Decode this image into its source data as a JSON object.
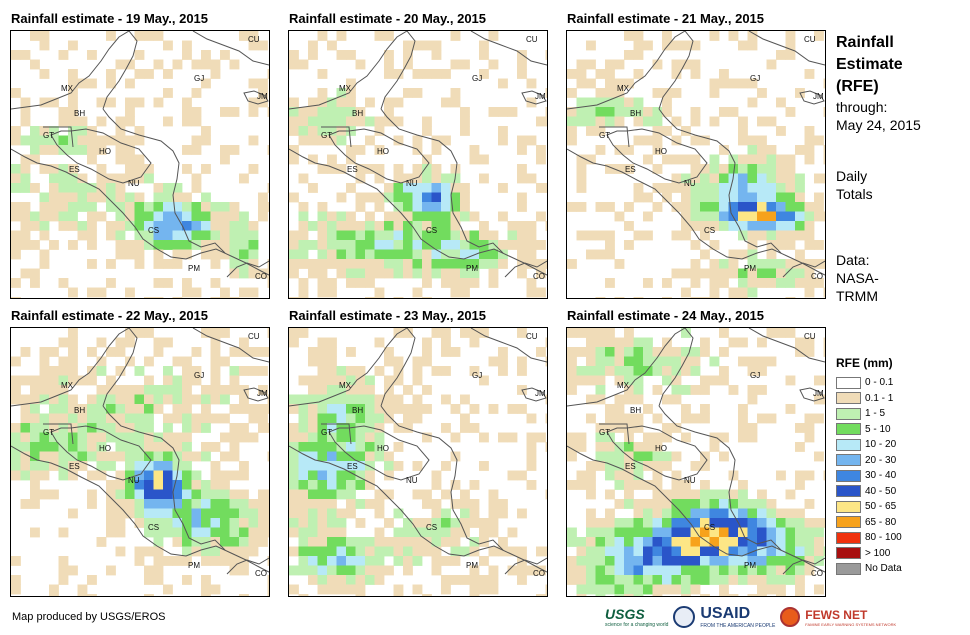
{
  "panels": [
    {
      "title": "Rainfall estimate - 19 May., 2015",
      "seed": 19,
      "profile": "d19"
    },
    {
      "title": "Rainfall estimate - 20 May., 2015",
      "seed": 20,
      "profile": "d20"
    },
    {
      "title": "Rainfall estimate - 21 May., 2015",
      "seed": 21,
      "profile": "d21"
    },
    {
      "title": "Rainfall estimate - 22 May., 2015",
      "seed": 22,
      "profile": "d22"
    },
    {
      "title": "Rainfall estimate - 23 May., 2015",
      "seed": 23,
      "profile": "d23"
    },
    {
      "title": "Rainfall estimate - 24 May., 2015",
      "seed": 24,
      "profile": "d24"
    }
  ],
  "country_labels": [
    "MX",
    "BH",
    "GT",
    "HO",
    "ES",
    "NU",
    "CS",
    "PM",
    "CU",
    "GJ",
    "JM",
    "CO"
  ],
  "side": {
    "title_lines": [
      "Rainfall",
      "Estimate",
      "(RFE)"
    ],
    "through_label": "through:",
    "through_date": "May 24, 2015",
    "period_lines": [
      "Daily",
      "Totals"
    ],
    "data_lines": [
      "Data:",
      "NASA-",
      "TRMM"
    ]
  },
  "legend": {
    "title": "RFE (mm)",
    "items": [
      {
        "label": "0 - 0.1",
        "color": "#ffffff"
      },
      {
        "label": "0.1 - 1",
        "color": "#f0dcb8"
      },
      {
        "label": "1 - 5",
        "color": "#bff0b2"
      },
      {
        "label": "5 - 10",
        "color": "#72dc5e"
      },
      {
        "label": "10 - 20",
        "color": "#b7e9f7"
      },
      {
        "label": "20 - 30",
        "color": "#74b5ef"
      },
      {
        "label": "30 - 40",
        "color": "#3f86e0"
      },
      {
        "label": "40 - 50",
        "color": "#2a55c9"
      },
      {
        "label": "50 - 65",
        "color": "#fde686"
      },
      {
        "label": "65 - 80",
        "color": "#f7a21c"
      },
      {
        "label": "80 - 100",
        "color": "#f0320e"
      },
      {
        "label": "> 100",
        "color": "#a81010"
      },
      {
        "label": "No Data",
        "color": "#9a9a9a"
      }
    ]
  },
  "footer": {
    "credit": "Map produced by USGS/EROS"
  },
  "logos": {
    "usgs": "USGS",
    "usgs_tag": "science for a changing world",
    "usaid": "USAID",
    "usaid_tag": "FROM THE AMERICAN PEOPLE",
    "fews": "FEWS NET",
    "fews_tag": "FAMINE EARLY WARNING SYSTEMS NETWORK"
  }
}
